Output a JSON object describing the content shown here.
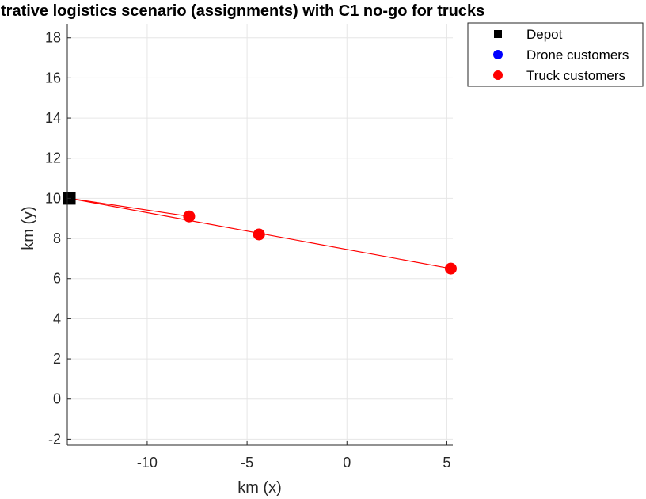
{
  "chart_data": {
    "type": "scatter",
    "title": "trative logistics scenario (assignments) with C1 no-go for trucks",
    "xlabel": "km (x)",
    "ylabel": "km (y)",
    "xlim": [
      -14,
      5.3
    ],
    "ylim": [
      -2.3,
      18.7
    ],
    "xticks": [
      -10,
      -5,
      0,
      5
    ],
    "yticks": [
      -2,
      0,
      2,
      4,
      6,
      8,
      10,
      12,
      14,
      16,
      18
    ],
    "grid": true,
    "legend_position": "outside-top-right",
    "legend": [
      "Depot",
      "Drone customers",
      "Truck customers"
    ],
    "colors": {
      "depot": "#000000",
      "drone": "#0000ff",
      "truck": "#ff0000",
      "grid": "#e6e6e6"
    },
    "depot": {
      "x": -13.9,
      "y": 10.0
    },
    "drone_customers": [],
    "truck_customers": [
      {
        "x": -7.9,
        "y": 9.1
      },
      {
        "x": -4.4,
        "y": 8.2
      },
      {
        "x": 5.2,
        "y": 6.5
      }
    ],
    "routes": [
      {
        "from": [
          -13.9,
          10.0
        ],
        "to": [
          -7.9,
          9.1
        ]
      },
      {
        "from": [
          -13.9,
          10.0
        ],
        "to": [
          5.2,
          6.5
        ]
      }
    ]
  }
}
